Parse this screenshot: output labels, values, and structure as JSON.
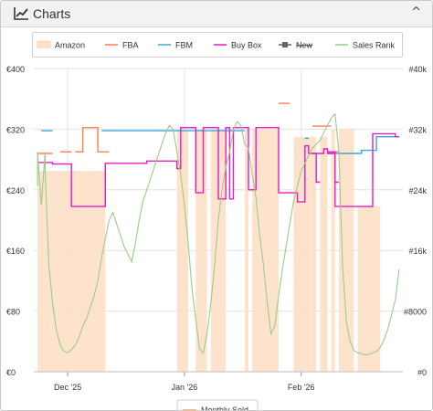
{
  "header": {
    "title": "Charts",
    "collapse_glyph": "^",
    "icon": "line-chart-icon"
  },
  "legend": [
    {
      "label": "Amazon",
      "color": "#fde0c5",
      "kind": "area"
    },
    {
      "label": "FBA",
      "color": "#ff7f50",
      "kind": "line"
    },
    {
      "label": "FBM",
      "color": "#3aa7d9",
      "kind": "line"
    },
    {
      "label": "Buy Box",
      "color": "#e81cc4",
      "kind": "line"
    },
    {
      "label": "New",
      "color": "#666666",
      "kind": "square",
      "struck": true
    },
    {
      "label": "Sales Rank",
      "color": "#99cc88",
      "kind": "line"
    }
  ],
  "bottom_legend": {
    "label": "Monthly Sold",
    "color": "#f7a35c"
  },
  "chart_data": {
    "type": "line",
    "x_ticks": [
      "Dec '25",
      "Jan '26",
      "Feb '26"
    ],
    "y_left": {
      "ticks": [
        "€0",
        "€80",
        "€160",
        "€240",
        "€320",
        "€400"
      ],
      "range": [
        0,
        400
      ]
    },
    "y_right": {
      "ticks": [
        "#0",
        "#8000",
        "#16k",
        "#24k",
        "#32k",
        "#40k"
      ],
      "range": [
        0,
        40000
      ]
    },
    "grid": true,
    "legend_position": "top",
    "series": [
      {
        "name": "Amazon",
        "type": "area",
        "segments": [
          [
            [
              "2025-11-23",
              0
            ],
            [
              "2025-11-23",
              265
            ],
            [
              "2025-12-11",
              265
            ],
            [
              "2025-12-11",
              0
            ]
          ],
          [
            [
              "2025-12-30",
              0
            ],
            [
              "2025-12-30",
              320
            ],
            [
              "2026-01-02",
              320
            ],
            [
              "2026-01-02",
              0
            ]
          ],
          [
            [
              "2026-01-04",
              0
            ],
            [
              "2026-01-04",
              320
            ],
            [
              "2026-01-07",
              320
            ],
            [
              "2026-01-07",
              0
            ]
          ],
          [
            [
              "2026-01-08",
              0
            ],
            [
              "2026-01-08",
              320
            ],
            [
              "2026-01-12",
              320
            ],
            [
              "2026-01-12",
              0
            ]
          ],
          [
            [
              "2026-01-17",
              0
            ],
            [
              "2026-01-17",
              320
            ],
            [
              "2026-01-18",
              320
            ],
            [
              "2026-01-18",
              0
            ]
          ],
          [
            [
              "2026-01-19",
              0
            ],
            [
              "2026-01-19",
              320
            ],
            [
              "2026-01-26",
              320
            ],
            [
              "2026-01-26",
              0
            ]
          ],
          [
            [
              "2026-01-30",
              0
            ],
            [
              "2026-01-30",
              310
            ],
            [
              "2026-02-05",
              310
            ],
            [
              "2026-02-05",
              0
            ]
          ],
          [
            [
              "2026-02-06",
              0
            ],
            [
              "2026-02-06",
              310
            ],
            [
              "2026-02-08",
              310
            ],
            [
              "2026-02-08",
              0
            ]
          ],
          [
            [
              "2026-02-09",
              0
            ],
            [
              "2026-02-09",
              320
            ],
            [
              "2026-02-10",
              320
            ],
            [
              "2026-02-10",
              0
            ]
          ],
          [
            [
              "2026-02-11",
              0
            ],
            [
              "2026-02-11",
              320
            ],
            [
              "2026-02-15",
              320
            ],
            [
              "2026-02-15",
              0
            ]
          ],
          [
            [
              "2026-02-16",
              0
            ],
            [
              "2026-02-16",
              218
            ],
            [
              "2026-02-22",
              218
            ],
            [
              "2026-02-22",
              0
            ]
          ]
        ]
      },
      {
        "name": "FBA",
        "type": "line",
        "segments": [
          [
            [
              "2025-11-23",
              288
            ],
            [
              "2025-11-27",
              288
            ]
          ],
          [
            [
              "2025-11-29",
              290
            ],
            [
              "2025-12-02",
              290
            ]
          ],
          [
            [
              "2025-12-03",
              290
            ],
            [
              "2025-12-05",
              290
            ],
            [
              "2025-12-05",
              322
            ],
            [
              "2025-12-09",
              322
            ],
            [
              "2025-12-09",
              290
            ],
            [
              "2025-12-12",
              290
            ]
          ],
          [
            [
              "2026-01-26",
              354
            ],
            [
              "2026-01-29",
              354
            ]
          ],
          [
            [
              "2026-02-04",
              324
            ],
            [
              "2026-02-09",
              324
            ]
          ],
          [
            [
              "2026-02-08",
              290
            ],
            [
              "2026-02-11",
              290
            ]
          ]
        ]
      },
      {
        "name": "FBM",
        "type": "line",
        "segments": [
          [
            [
              "2025-11-24",
              318
            ],
            [
              "2025-11-27",
              318
            ]
          ],
          [
            [
              "2025-12-10",
              318
            ],
            [
              "2026-01-02",
              318
            ]
          ],
          [
            [
              "2026-01-02",
              318
            ],
            [
              "2026-01-17",
              318
            ]
          ],
          [
            [
              "2026-02-02",
              308
            ],
            [
              "2026-02-03",
              308
            ]
          ],
          [
            [
              "2026-02-08",
              288
            ],
            [
              "2026-02-17",
              288
            ],
            [
              "2026-02-17",
              292
            ],
            [
              "2026-02-21",
              292
            ],
            [
              "2026-02-21",
              310
            ],
            [
              "2026-02-27",
              310
            ]
          ]
        ]
      },
      {
        "name": "Buy Box",
        "type": "line",
        "segments": [
          [
            [
              "2025-11-23",
              276
            ],
            [
              "2025-11-27",
              276
            ],
            [
              "2025-11-27",
              274
            ],
            [
              "2025-12-02",
              274
            ],
            [
              "2025-12-02",
              218
            ],
            [
              "2025-12-11",
              218
            ],
            [
              "2025-12-11",
              275
            ],
            [
              "2025-12-22",
              275
            ],
            [
              "2025-12-22",
              278
            ],
            [
              "2025-12-30",
              278
            ],
            [
              "2025-12-30",
              268
            ],
            [
              "2025-12-31",
              268
            ],
            [
              "2025-12-31",
              322
            ],
            [
              "2026-01-04",
              322
            ],
            [
              "2026-01-04",
              236
            ],
            [
              "2026-01-06",
              236
            ],
            [
              "2026-01-06",
              322
            ],
            [
              "2026-01-10",
              322
            ],
            [
              "2026-01-10",
              228
            ],
            [
              "2026-01-12",
              228
            ],
            [
              "2026-01-12",
              322
            ],
            [
              "2026-01-13",
              322
            ],
            [
              "2026-01-13",
              228
            ],
            [
              "2026-01-14",
              228
            ],
            [
              "2026-01-14",
              322
            ],
            [
              "2026-01-18",
              322
            ],
            [
              "2026-01-18",
              240
            ],
            [
              "2026-01-20",
              240
            ],
            [
              "2026-01-20",
              322
            ],
            [
              "2026-01-26",
              322
            ],
            [
              "2026-01-26",
              236
            ],
            [
              "2026-01-31",
              236
            ],
            [
              "2026-01-31",
              224
            ],
            [
              "2026-02-02",
              224
            ],
            [
              "2026-02-02",
              298
            ],
            [
              "2026-02-03",
              298
            ],
            [
              "2026-02-03",
              288
            ],
            [
              "2026-02-07",
              288
            ],
            [
              "2026-02-07",
              294
            ],
            [
              "2026-02-08",
              294
            ],
            [
              "2026-02-08",
              288
            ],
            [
              "2026-02-10",
              288
            ],
            [
              "2026-02-10",
              218
            ],
            [
              "2026-02-20",
              218
            ],
            [
              "2026-02-20",
              314
            ],
            [
              "2026-02-26",
              314
            ],
            [
              "2026-02-26",
              310
            ],
            [
              "2026-02-27",
              310
            ]
          ],
          [
            [
              "2026-02-04",
              288
            ],
            [
              "2026-02-05",
              288
            ],
            [
              "2026-02-05",
              250
            ],
            [
              "2026-02-06",
              250
            ]
          ],
          [
            [
              "2026-02-08",
              290
            ],
            [
              "2026-02-10",
              290
            ],
            [
              "2026-02-10",
              250
            ],
            [
              "2026-02-11",
              250
            ]
          ]
        ]
      },
      {
        "name": "Sales Rank",
        "type": "line",
        "axis": "right",
        "points": [
          [
            "2025-11-23",
            24500
          ],
          [
            "2025-11-23",
            29000
          ],
          [
            "2025-11-24",
            22000
          ],
          [
            "2025-11-25",
            29000
          ],
          [
            "2025-11-25",
            26500
          ],
          [
            "2025-11-26",
            14000
          ],
          [
            "2025-11-27",
            9000
          ],
          [
            "2025-11-28",
            5500
          ],
          [
            "2025-11-29",
            3500
          ],
          [
            "2025-11-30",
            2700
          ],
          [
            "2025-12-01",
            2500
          ],
          [
            "2025-12-02",
            2900
          ],
          [
            "2025-12-03",
            3500
          ],
          [
            "2025-12-04",
            4500
          ],
          [
            "2025-12-05",
            6000
          ],
          [
            "2025-12-06",
            7000
          ],
          [
            "2025-12-07",
            8500
          ],
          [
            "2025-12-08",
            10000
          ],
          [
            "2025-12-09",
            12000
          ],
          [
            "2025-12-10",
            15000
          ],
          [
            "2025-12-11",
            17500
          ],
          [
            "2025-12-12",
            20000
          ],
          [
            "2025-12-13",
            21000
          ],
          [
            "2025-12-14",
            19500
          ],
          [
            "2025-12-15",
            18000
          ],
          [
            "2025-12-16",
            16500
          ],
          [
            "2025-12-17",
            15500
          ],
          [
            "2025-12-18",
            14500
          ],
          [
            "2025-12-19",
            17000
          ],
          [
            "2025-12-20",
            20000
          ],
          [
            "2025-12-21",
            22500
          ],
          [
            "2025-12-22",
            24000
          ],
          [
            "2025-12-23",
            25500
          ],
          [
            "2025-12-24",
            27000
          ],
          [
            "2025-12-25",
            28500
          ],
          [
            "2025-12-26",
            30000
          ],
          [
            "2025-12-27",
            31500
          ],
          [
            "2025-12-28",
            32500
          ],
          [
            "2025-12-29",
            32000
          ],
          [
            "2025-12-30",
            29000
          ],
          [
            "2025-12-31",
            26000
          ],
          [
            "2026-01-01",
            22000
          ],
          [
            "2026-01-02",
            17000
          ],
          [
            "2026-01-03",
            11000
          ],
          [
            "2026-01-04",
            7000
          ],
          [
            "2026-01-05",
            3000
          ],
          [
            "2026-01-06",
            2500
          ],
          [
            "2026-01-07",
            5000
          ],
          [
            "2026-01-08",
            9000
          ],
          [
            "2026-01-09",
            14000
          ],
          [
            "2026-01-10",
            20000
          ],
          [
            "2026-01-11",
            24000
          ],
          [
            "2026-01-12",
            27000
          ],
          [
            "2026-01-13",
            29000
          ],
          [
            "2026-01-14",
            32000
          ],
          [
            "2026-01-15",
            33000
          ],
          [
            "2026-01-16",
            32500
          ],
          [
            "2026-01-17",
            30000
          ],
          [
            "2026-01-18",
            29500
          ],
          [
            "2026-01-19",
            26000
          ],
          [
            "2026-01-20",
            23000
          ],
          [
            "2026-01-21",
            18000
          ],
          [
            "2026-01-22",
            14000
          ],
          [
            "2026-01-23",
            9000
          ],
          [
            "2026-01-24",
            5000
          ],
          [
            "2026-01-25",
            6000
          ],
          [
            "2026-01-26",
            10000
          ],
          [
            "2026-01-27",
            13500
          ],
          [
            "2026-01-28",
            16500
          ],
          [
            "2026-01-29",
            19500
          ],
          [
            "2026-01-30",
            22500
          ],
          [
            "2026-01-31",
            24500
          ],
          [
            "2026-02-01",
            26500
          ],
          [
            "2026-02-02",
            27500
          ],
          [
            "2026-02-03",
            28500
          ],
          [
            "2026-02-04",
            29500
          ],
          [
            "2026-02-05",
            30000
          ],
          [
            "2026-02-06",
            30500
          ],
          [
            "2026-02-07",
            31500
          ],
          [
            "2026-02-08",
            32500
          ],
          [
            "2026-02-09",
            33500
          ],
          [
            "2026-02-10",
            34000
          ],
          [
            "2026-02-11",
            29000
          ],
          [
            "2026-02-12",
            14000
          ],
          [
            "2026-02-13",
            6500
          ],
          [
            "2026-02-14",
            4000
          ],
          [
            "2026-02-15",
            2800
          ],
          [
            "2026-02-16",
            2500
          ],
          [
            "2026-02-17",
            2400
          ],
          [
            "2026-02-18",
            2200
          ],
          [
            "2026-02-19",
            2300
          ],
          [
            "2026-02-20",
            2500
          ],
          [
            "2026-02-21",
            2700
          ],
          [
            "2026-02-22",
            3200
          ],
          [
            "2026-02-23",
            4200
          ],
          [
            "2026-02-24",
            5600
          ],
          [
            "2026-02-25",
            7500
          ],
          [
            "2026-02-26",
            9500
          ],
          [
            "2026-02-27",
            13500
          ]
        ]
      }
    ]
  }
}
